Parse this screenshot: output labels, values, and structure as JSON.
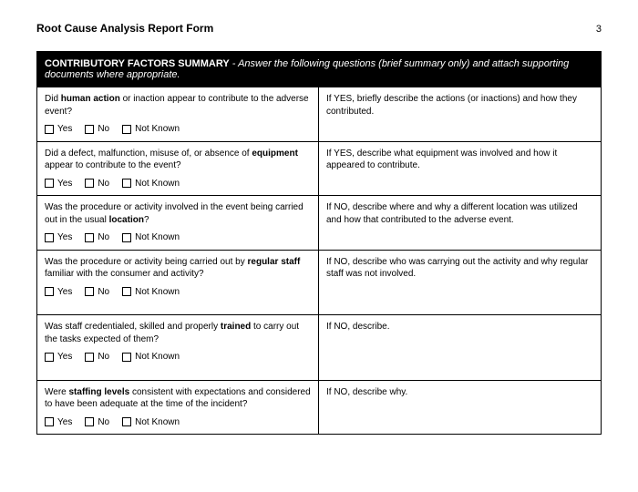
{
  "header": {
    "title": "Root Cause Analysis Report Form",
    "page_number": "3"
  },
  "banner": {
    "title": "CONTRIBUTORY FACTORS SUMMARY",
    "subtitle": " - Answer the following questions (brief summary only) and attach supporting documents where appropriate."
  },
  "checkbox_labels": {
    "yes": "Yes",
    "no": "No",
    "not_known": "Not Known"
  },
  "rows": [
    {
      "q_pre": "Did ",
      "q_bold": "human action",
      "q_post": " or inaction appear to contribute to the adverse event?",
      "right": "If YES, briefly describe the actions (or inactions) and how they contributed.",
      "tall": false
    },
    {
      "q_pre": "Did a defect, malfunction, misuse of, or absence of ",
      "q_bold": "equipment",
      "q_post": " appear to contribute to the event?",
      "right": "If YES, describe what equipment was involved and how it appeared to contribute.",
      "tall": false
    },
    {
      "q_pre": "Was the procedure or activity involved in the event being carried out in the usual ",
      "q_bold": "location",
      "q_post": "?",
      "right": "If NO, describe where and why a different location was utilized and how that contributed to the adverse event.",
      "tall": false
    },
    {
      "q_pre": "Was the procedure or activity being carried out by ",
      "q_bold": "regular staff",
      "q_post": " familiar with the consumer and activity?",
      "right": "If NO, describe who was carrying out the activity and why regular staff was not involved.",
      "tall": true
    },
    {
      "q_pre": "Was staff credentialed, skilled and properly ",
      "q_bold": "trained",
      "q_post": " to carry out the tasks expected of them?",
      "right": "If NO, describe.",
      "tall": true
    },
    {
      "q_pre": "Were ",
      "q_bold": "staffing levels",
      "q_post": " consistent with expectations and considered to have been adequate at the time of the incident?",
      "right": "If NO, describe why.",
      "tall": false
    }
  ]
}
